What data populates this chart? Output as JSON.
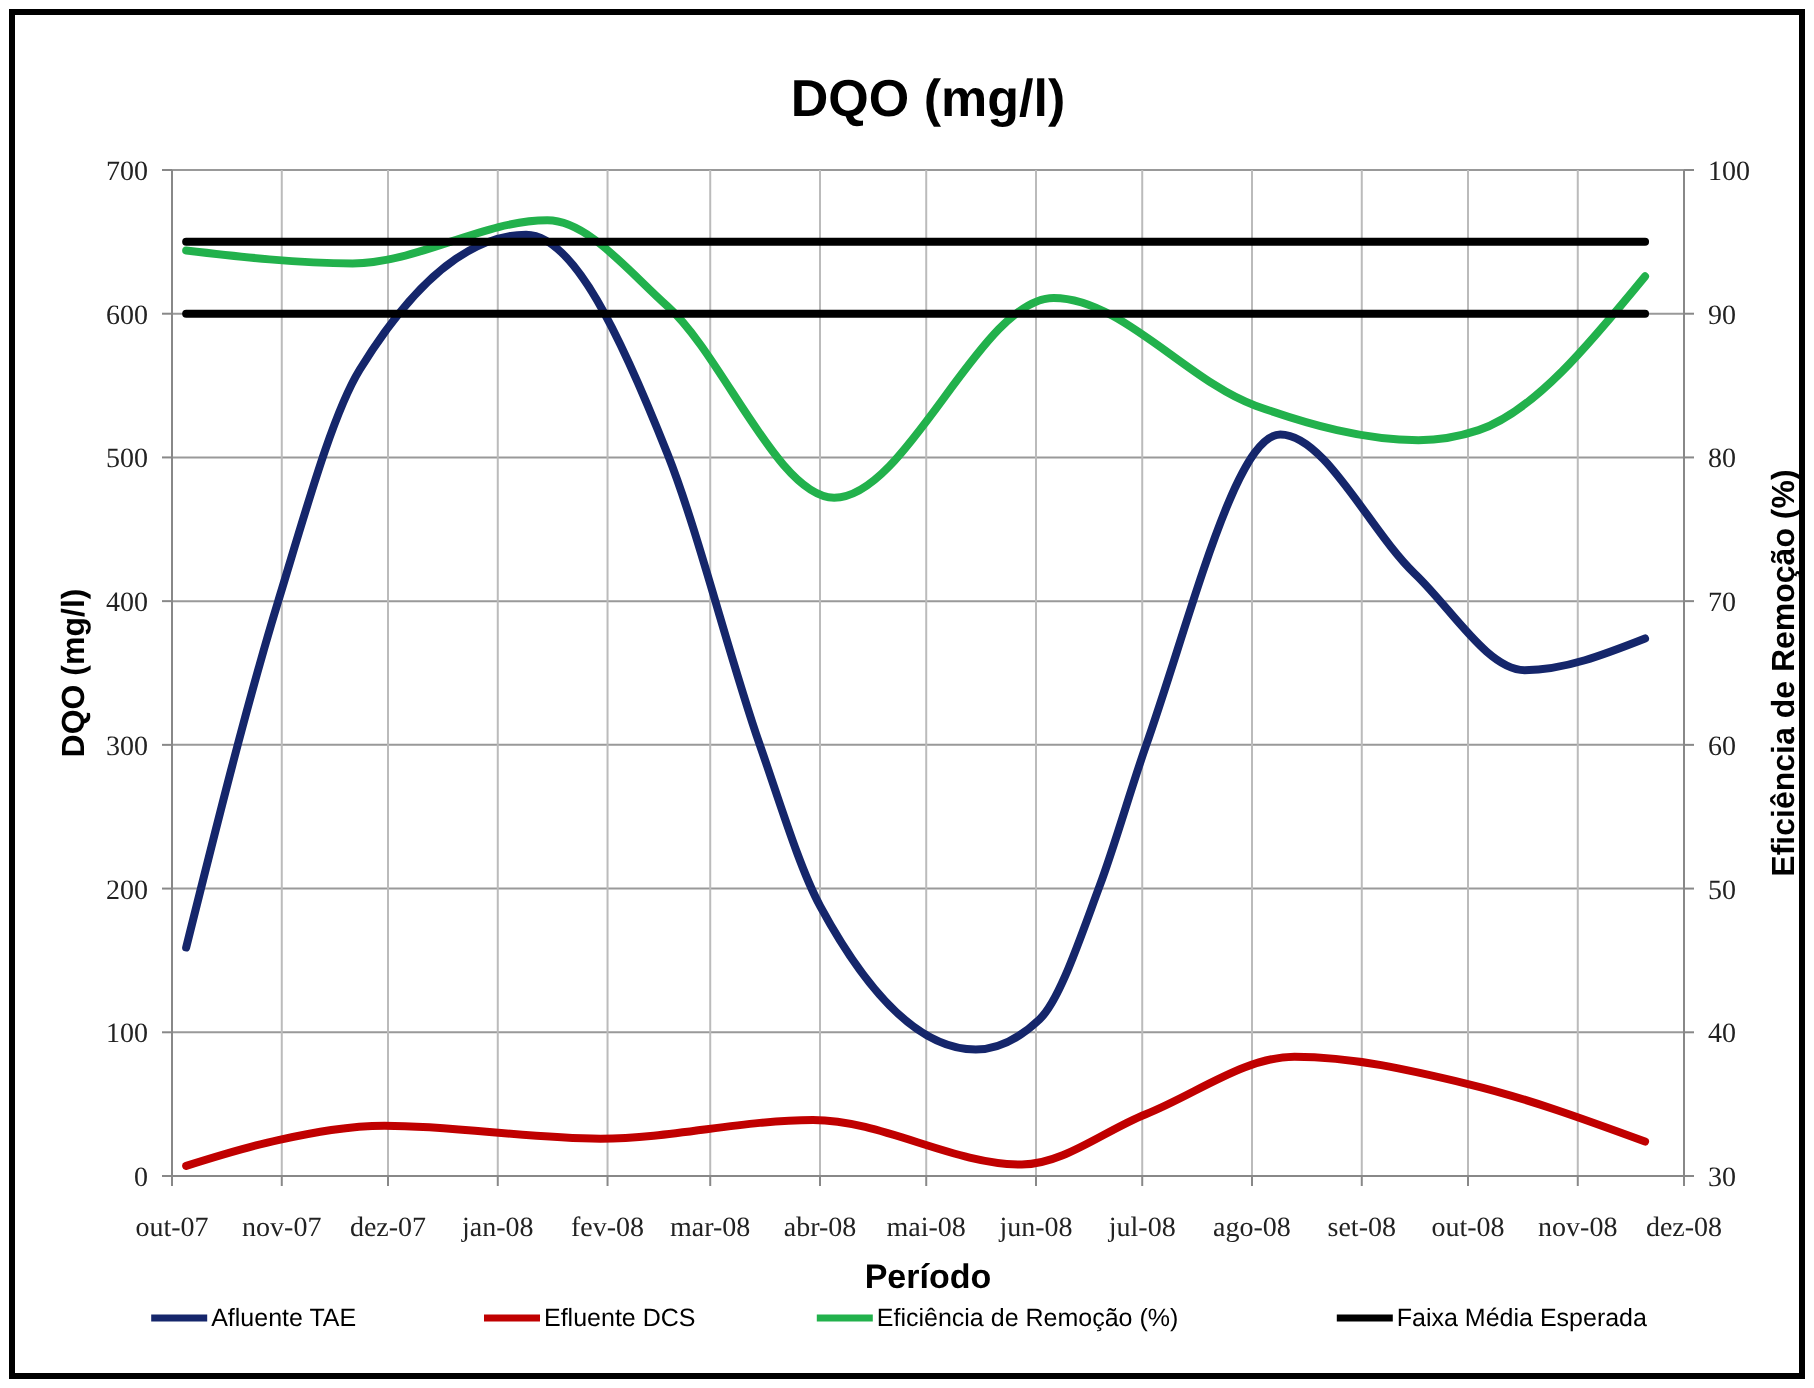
{
  "chart_data": {
    "type": "line",
    "title": "DQO (mg/l)",
    "xlabel": "Período",
    "ylabel": "DQO (mg/l)",
    "y2label": "Eficiência de Remoção (%)",
    "xlim": [
      "2007-10-01",
      "2008-12-01"
    ],
    "xticks": [
      {
        "value": "2007-10-01",
        "label": "out-07"
      },
      {
        "value": "2007-11-01",
        "label": "nov-07"
      },
      {
        "value": "2007-12-01",
        "label": "dez-07"
      },
      {
        "value": "2008-01-01",
        "label": "jan-08"
      },
      {
        "value": "2008-02-01",
        "label": "fev-08"
      },
      {
        "value": "2008-03-01",
        "label": "mar-08"
      },
      {
        "value": "2008-04-01",
        "label": "abr-08"
      },
      {
        "value": "2008-05-01",
        "label": "mai-08"
      },
      {
        "value": "2008-06-01",
        "label": "jun-08"
      },
      {
        "value": "2008-07-01",
        "label": "jul-08"
      },
      {
        "value": "2008-08-01",
        "label": "ago-08"
      },
      {
        "value": "2008-09-01",
        "label": "set-08"
      },
      {
        "value": "2008-10-01",
        "label": "out-08"
      },
      {
        "value": "2008-11-01",
        "label": "nov-08"
      },
      {
        "value": "2008-12-01",
        "label": "dez-08"
      }
    ],
    "ylim": [
      0,
      700
    ],
    "yticks": [
      0,
      100,
      200,
      300,
      400,
      500,
      600,
      700
    ],
    "y2lim": [
      30,
      100
    ],
    "y2ticks": [
      30,
      40,
      50,
      60,
      70,
      80,
      90,
      100
    ],
    "grid": true,
    "legend": "bottom",
    "marker": "none",
    "line_style": "solid",
    "series": [
      {
        "name": "Afluente TAE",
        "color": "#15266b",
        "x": [
          "2007-10-05",
          "2007-10-31",
          "2007-11-23",
          "2008-01-09",
          "2008-02-18",
          "2008-03-15",
          "2008-04-01",
          "2008-05-15",
          "2008-06-02",
          "2008-06-19",
          "2008-07-02",
          "2008-08-09",
          "2008-09-16",
          "2008-10-17",
          "2008-11-20"
        ],
        "values": [
          159,
          400,
          561,
          655,
          502,
          300,
          188,
          88,
          109,
          202,
          299,
          516,
          419,
          352,
          374
        ]
      },
      {
        "name": "Efluente DCS",
        "color": "#c00000",
        "x": [
          "2007-10-05",
          "2007-10-31",
          "2007-11-30",
          "2008-01-30",
          "2008-03-30",
          "2008-05-28",
          "2008-07-02",
          "2008-08-13",
          "2008-10-01",
          "2008-11-20"
        ],
        "values": [
          7,
          25,
          35,
          26,
          39,
          8,
          43,
          83,
          64,
          24
        ]
      },
      {
        "name": "Eficiência de Remoção (%)",
        "color": "#22b14c",
        "axis": "y2",
        "x": [
          "2007-10-05",
          "2007-11-21",
          "2008-01-15",
          "2008-02-18",
          "2008-04-05",
          "2008-06-06",
          "2008-08-02",
          "2008-09-17",
          "2008-10-04",
          "2008-11-20"
        ],
        "values": [
          94.4,
          93.5,
          96.5,
          90.5,
          77.2,
          91.1,
          83.6,
          81.2,
          81.9,
          92.6
        ]
      },
      {
        "name": "Faixa Média Esperada",
        "color": "#000000",
        "axis": "y2",
        "x": [
          "2007-10-05",
          "2008-11-20"
        ],
        "values": [
          95,
          95
        ]
      },
      {
        "color": "#000000",
        "axis": "y2",
        "x": [
          "2007-10-05",
          "2008-11-20"
        ],
        "values": [
          90,
          90
        ]
      }
    ]
  }
}
